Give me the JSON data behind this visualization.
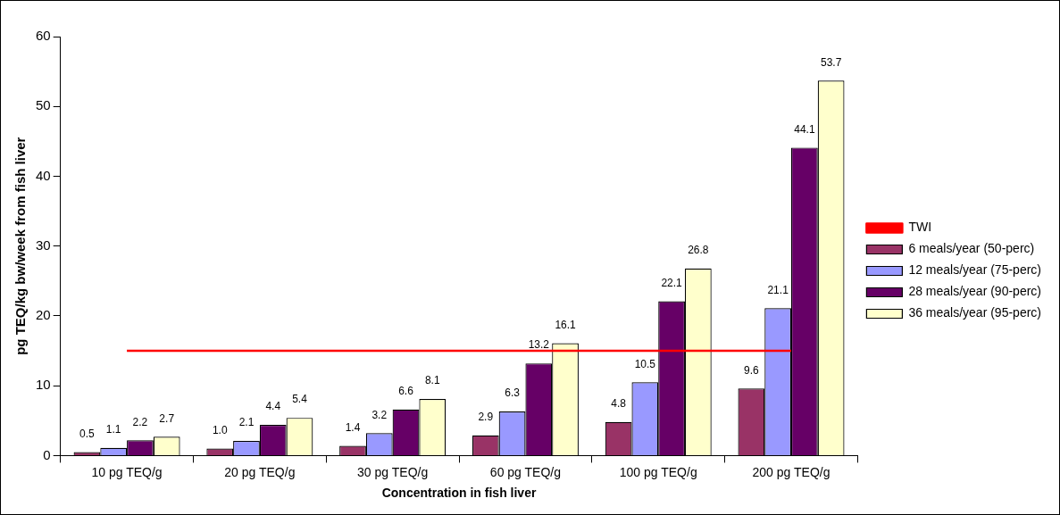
{
  "chart_data": {
    "type": "bar",
    "xlabel": "Concentration in fish liver",
    "ylabel": "pg TEQ/kg bw/week from fish liver",
    "categories": [
      "10 pg TEQ/g",
      "20 pg TEQ/g",
      "30 pg TEQ/g",
      "60 pg TEQ/g",
      "100 pg TEQ/g",
      "200 pg TEQ/g"
    ],
    "series": [
      {
        "name": "6 meals/year (50-perc)",
        "color": "#993366",
        "values": [
          0.5,
          1.0,
          1.4,
          2.9,
          4.8,
          9.6
        ],
        "value_labels": [
          "0.5",
          "1.0",
          "1.4",
          "2.9",
          "4.8",
          "9.6"
        ]
      },
      {
        "name": "12 meals/year (75-perc)",
        "color": "#9999ff",
        "values": [
          1.1,
          2.1,
          3.2,
          6.3,
          10.5,
          21.1
        ],
        "value_labels": [
          "1.1",
          "2.1",
          "3.2",
          "6.3",
          "10.5",
          "21.1"
        ]
      },
      {
        "name": "28 meals/year (90-perc)",
        "color": "#660066",
        "values": [
          2.2,
          4.4,
          6.6,
          13.2,
          22.1,
          44.1
        ],
        "value_labels": [
          "2.2",
          "4.4",
          "6.6",
          "13.2",
          "22.1",
          "44.1"
        ]
      },
      {
        "name": "36 meals/year (95-perc)",
        "color": "#ffffcc",
        "values": [
          2.7,
          5.4,
          8.1,
          16.1,
          26.8,
          53.7
        ],
        "value_labels": [
          "2.7",
          "5.4",
          "8.1",
          "16.1",
          "26.8",
          "53.7"
        ]
      },
      {
        "name": "TWI",
        "type": "line",
        "color": "#ff0000",
        "values": [
          15,
          15,
          15,
          15,
          15,
          15
        ],
        "marker": "none"
      }
    ],
    "ylim": [
      0,
      60
    ],
    "yticks": [
      0,
      10,
      20,
      30,
      40,
      50,
      60
    ],
    "grid": false,
    "legend": "right"
  }
}
